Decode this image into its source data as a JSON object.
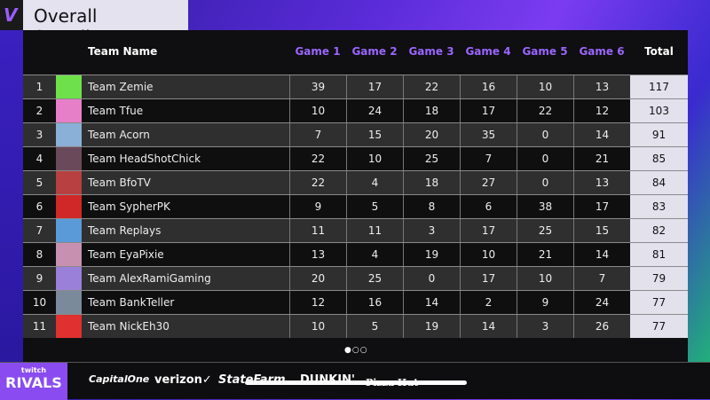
{
  "title": "Overall Standings",
  "logo": "V",
  "headers": {
    "team": "Team Name",
    "games": [
      "Game 1",
      "Game 2",
      "Game 3",
      "Game 4",
      "Game 5",
      "Game 6"
    ],
    "total": "Total"
  },
  "rows": [
    {
      "rank": "1",
      "team": "Team Zemie",
      "games": [
        "39",
        "17",
        "22",
        "16",
        "10",
        "13"
      ],
      "total": "117",
      "avatar": "#6ee04a"
    },
    {
      "rank": "2",
      "team": "Team Tfue",
      "games": [
        "10",
        "24",
        "18",
        "17",
        "22",
        "12"
      ],
      "total": "103",
      "avatar": "#e67fc8"
    },
    {
      "rank": "3",
      "team": "Team Acorn",
      "games": [
        "7",
        "15",
        "20",
        "35",
        "0",
        "14"
      ],
      "total": "91",
      "avatar": "#8ab0d8"
    },
    {
      "rank": "4",
      "team": "Team HeadShotChick",
      "games": [
        "22",
        "10",
        "25",
        "7",
        "0",
        "21"
      ],
      "total": "85",
      "avatar": "#6a4a5a"
    },
    {
      "rank": "5",
      "team": "Team BfoTV",
      "games": [
        "22",
        "4",
        "18",
        "27",
        "0",
        "13"
      ],
      "total": "84",
      "avatar": "#b84040"
    },
    {
      "rank": "6",
      "team": "Team SypherPK",
      "games": [
        "9",
        "5",
        "8",
        "6",
        "38",
        "17"
      ],
      "total": "83",
      "avatar": "#d02828"
    },
    {
      "rank": "7",
      "team": "Team Replays",
      "games": [
        "11",
        "11",
        "3",
        "17",
        "25",
        "15"
      ],
      "total": "82",
      "avatar": "#5a9ad8"
    },
    {
      "rank": "8",
      "team": "Team EyaPixie",
      "games": [
        "13",
        "4",
        "19",
        "10",
        "21",
        "14"
      ],
      "total": "81",
      "avatar": "#c890b0"
    },
    {
      "rank": "9",
      "team": "Team AlexRamiGaming",
      "games": [
        "20",
        "25",
        "0",
        "17",
        "10",
        "7"
      ],
      "total": "79",
      "avatar": "#9a80d8"
    },
    {
      "rank": "10",
      "team": "Team BankTeller",
      "games": [
        "12",
        "16",
        "14",
        "2",
        "9",
        "24"
      ],
      "total": "77",
      "avatar": "#7a8a9a"
    },
    {
      "rank": "11",
      "team": "Team NickEh30",
      "games": [
        "10",
        "5",
        "19",
        "14",
        "3",
        "26"
      ],
      "total": "77",
      "avatar": "#e03030"
    }
  ],
  "pagination": {
    "pages": 3,
    "current": 1,
    "dots": "●○○"
  },
  "footer": {
    "brand_small": "twitch",
    "brand": "RIVALS",
    "sponsors": [
      "CapitalOne",
      "verizon✓",
      "StateFarm",
      "DUNKIN'",
      "Pizza Hut"
    ]
  },
  "colors": {
    "accent": "#9a66ff",
    "total_bg": "#e2e1ec"
  }
}
